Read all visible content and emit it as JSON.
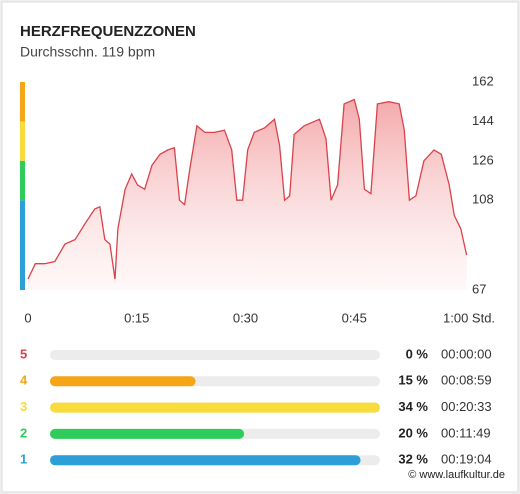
{
  "title": "HERZFREQUENZZONEN",
  "subtitle": "Durchsschn. 119 bpm",
  "chart_data": {
    "type": "area",
    "color": "#d9434a",
    "grid": false,
    "x": [
      0,
      1,
      2.3,
      3.7,
      5.1,
      6.5,
      7.8,
      9.2,
      9.9,
      10.6,
      11.3,
      12,
      12.4,
      13.4,
      14.3,
      15.1,
      16.1,
      17.1,
      18.2,
      19.3,
      20.2,
      20.9,
      21.6,
      22.3,
      23.3,
      24.4,
      25.7,
      27.1,
      28.1,
      28.8,
      29.6,
      30.3,
      31.2,
      32.6,
      34,
      34.7,
      35.4,
      36.1,
      36.7,
      38.1,
      40.2,
      41.1,
      41.8,
      42.7,
      43.6,
      45,
      45.7,
      46.4,
      47.3,
      48.2,
      49.8,
      51.2,
      51.9,
      52.6,
      53.5,
      54.6,
      56,
      57,
      58.1,
      58.8,
      59.7,
      60.5
    ],
    "values": [
      72,
      79,
      79,
      80,
      88,
      90,
      97,
      104,
      105,
      90,
      88,
      72,
      95,
      113,
      120,
      115,
      113,
      124,
      129,
      131,
      132,
      108,
      106,
      122,
      142,
      139,
      139,
      140,
      131,
      108,
      108,
      131,
      139,
      141,
      145,
      133,
      108,
      110,
      138,
      142,
      145,
      136,
      108,
      115,
      152,
      154,
      145,
      113,
      111,
      152,
      153,
      152,
      140,
      108,
      110,
      126,
      131,
      129,
      115,
      101,
      95,
      83
    ],
    "xlim": [
      0,
      60
    ],
    "xticks": [
      {
        "value": 0,
        "label": "0"
      },
      {
        "value": 15,
        "label": "0:15"
      },
      {
        "value": 30,
        "label": "0:30"
      },
      {
        "value": 45,
        "label": "0:45"
      },
      {
        "value": 60,
        "label": "1:00 Std."
      }
    ],
    "ylim": [
      67,
      162
    ],
    "yticks": [
      67,
      108,
      126,
      144,
      162
    ]
  },
  "zones": [
    {
      "label": "5",
      "color": "#d6434b",
      "percent": 0,
      "percent_label": "0 %",
      "time": "00:00:00"
    },
    {
      "label": "4",
      "color": "#f5a516",
      "percent": 15,
      "percent_label": "15 %",
      "time": "00:08:59"
    },
    {
      "label": "3",
      "color": "#f7dc3c",
      "percent": 34,
      "percent_label": "34 %",
      "time": "00:20:33"
    },
    {
      "label": "2",
      "color": "#2ecc5a",
      "percent": 20,
      "percent_label": "20 %",
      "time": "00:11:49"
    },
    {
      "label": "1",
      "color": "#2d9fd8",
      "percent": 32,
      "percent_label": "32 %",
      "time": "00:19:04"
    }
  ],
  "watermark": "© www.laufkultur.de"
}
